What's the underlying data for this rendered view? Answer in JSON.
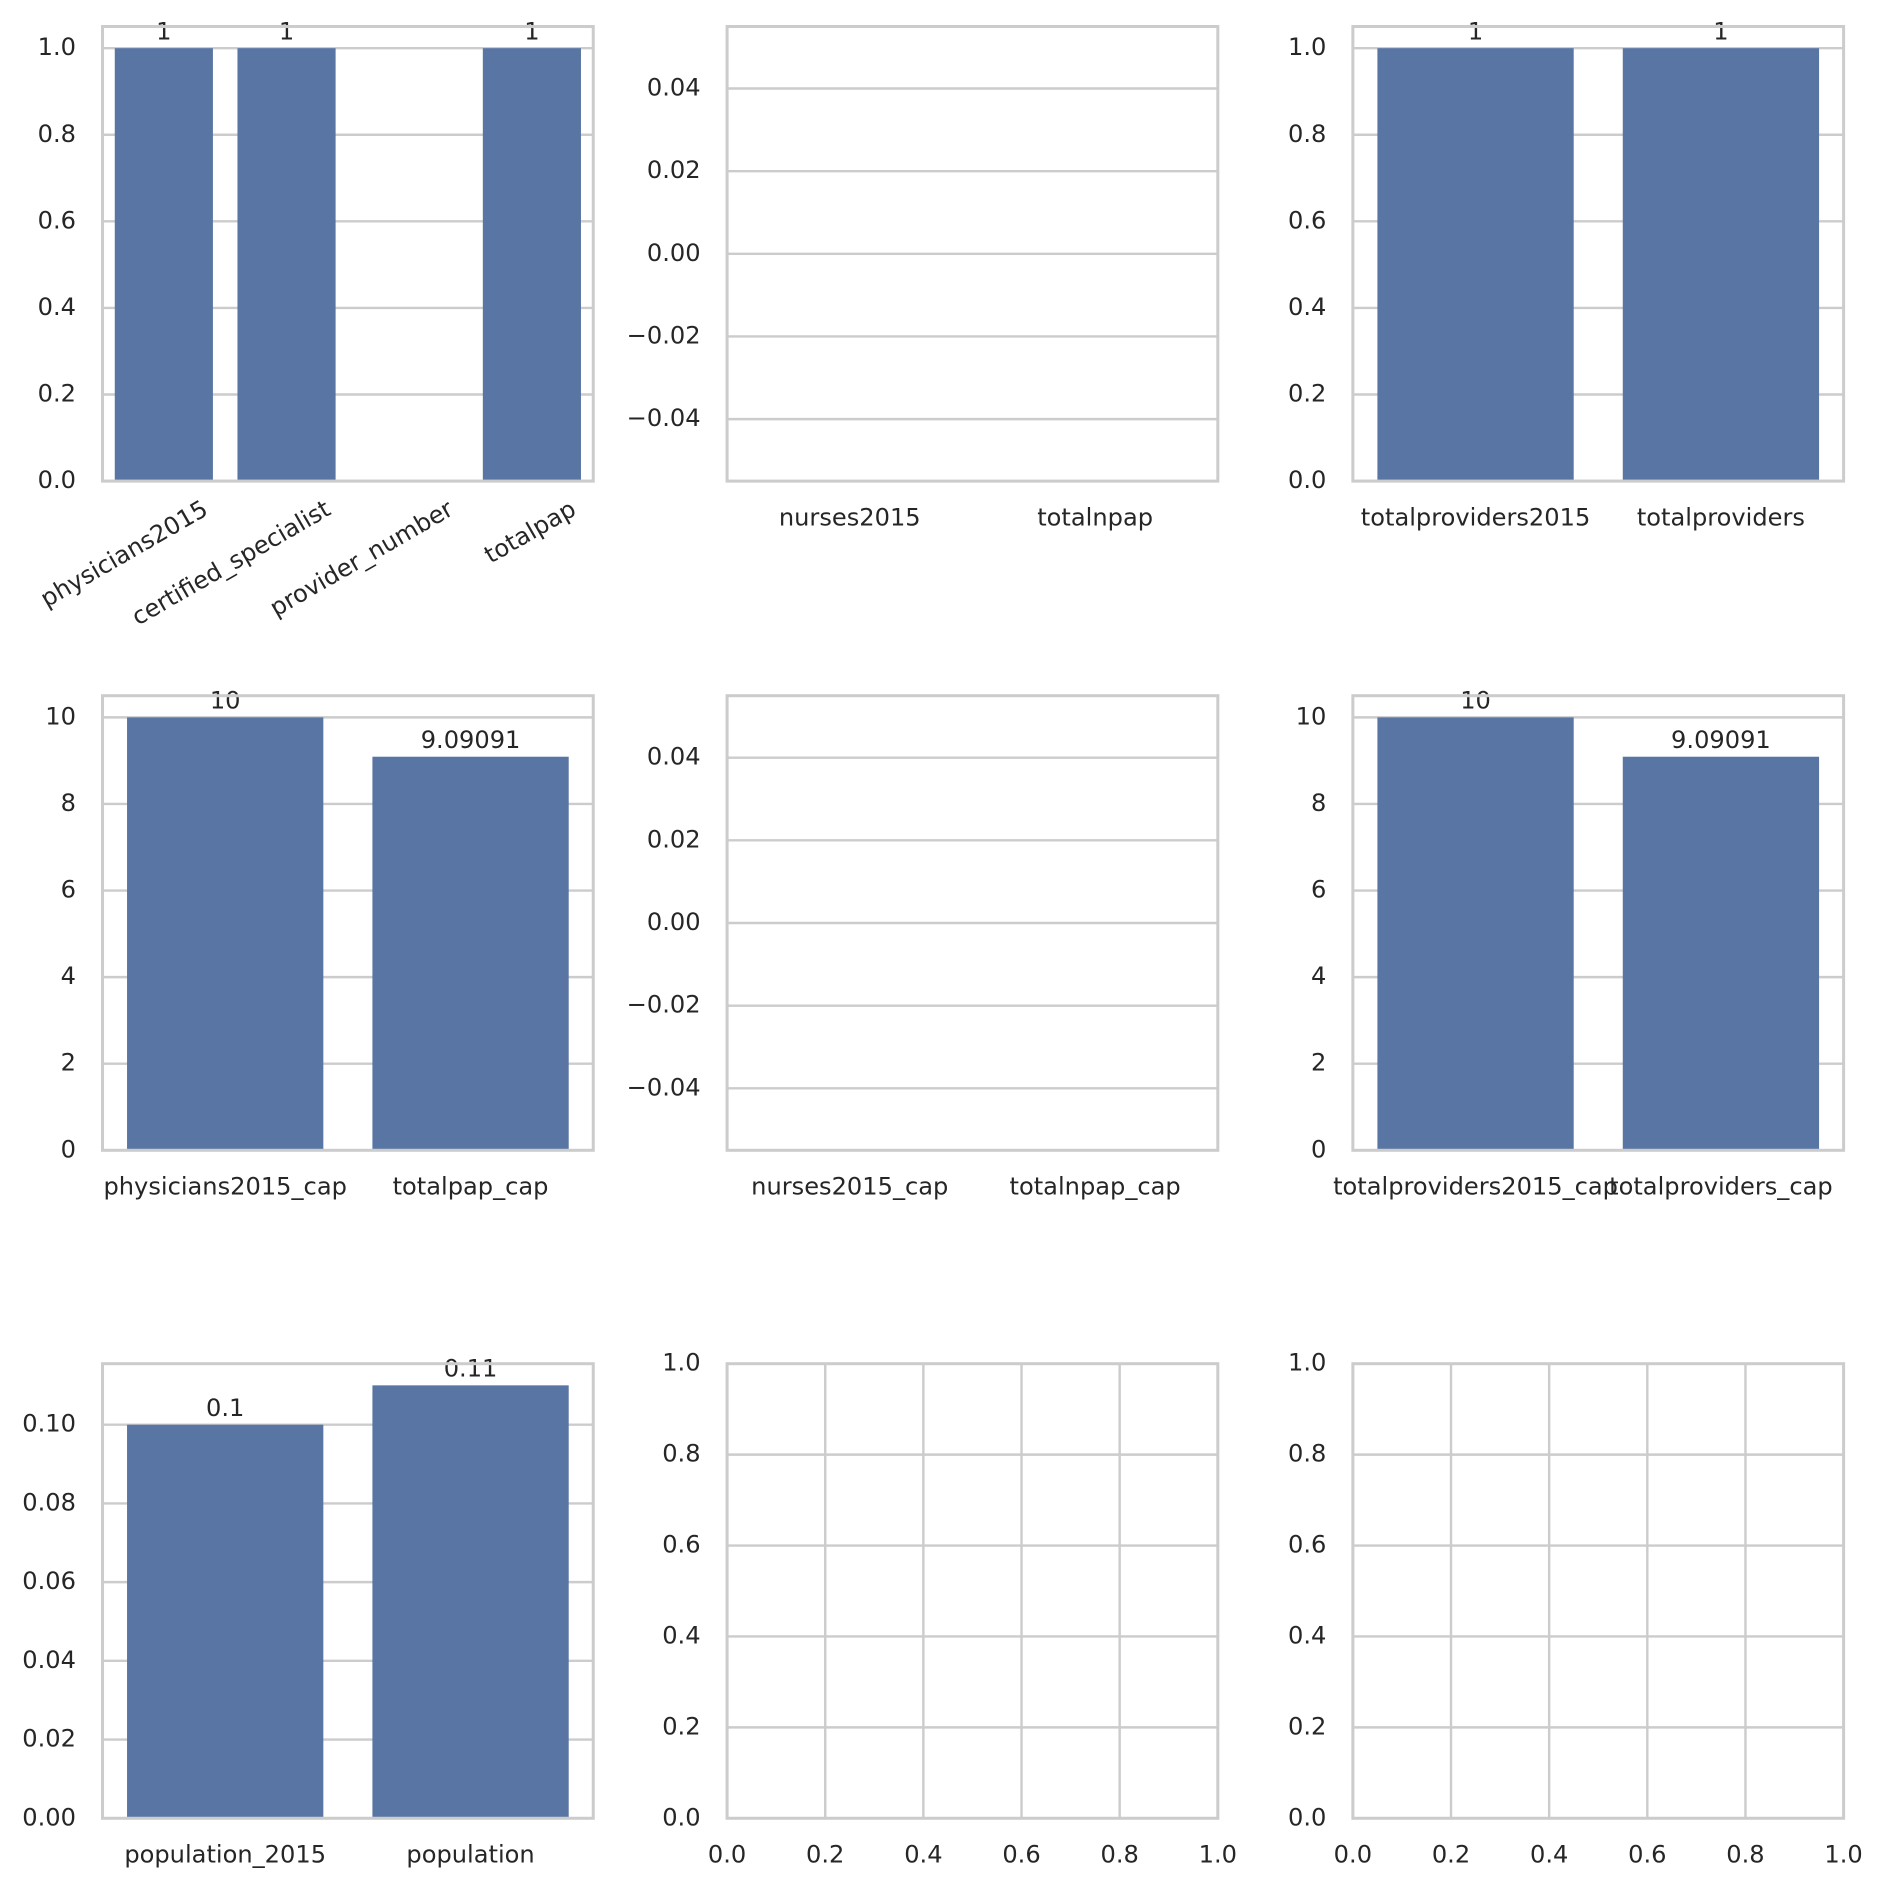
{
  "chart_data": [
    {
      "type": "bar",
      "categories": [
        "physicians2015",
        "certified_specialist",
        "provider_number",
        "totalpap"
      ],
      "values": [
        1,
        1,
        null,
        1
      ],
      "color": "#5975a4",
      "ylim": [
        0,
        1.05
      ],
      "yticks": [
        {
          "value": 0,
          "label": "0.0"
        },
        0.2,
        0.4,
        0.6,
        0.8,
        {
          "value": 1,
          "label": "1.0"
        }
      ],
      "grid": true
    },
    {
      "type": "bar",
      "categories": [
        "nurses2015",
        "totalnpap"
      ],
      "values": [
        null,
        null
      ],
      "color": "#5975a4",
      "ylim": [
        -0.055,
        0.055
      ],
      "yticks": [
        {
          "value": -0.04,
          "label": "−0.04"
        },
        {
          "value": -0.02,
          "label": "−0.02"
        },
        {
          "value": 0,
          "label": "0.00"
        },
        0.02,
        0.04
      ],
      "grid": true
    },
    {
      "type": "bar",
      "categories": [
        "totalproviders2015",
        "totalproviders"
      ],
      "values": [
        1,
        1
      ],
      "color": "#5975a4",
      "ylim": [
        0,
        1.05
      ],
      "yticks": [
        {
          "value": 0,
          "label": "0.0"
        },
        0.2,
        0.4,
        0.6,
        0.8,
        {
          "value": 1,
          "label": "1.0"
        }
      ],
      "grid": true
    },
    {
      "type": "bar",
      "categories": [
        "physicians2015_cap",
        "totalpap_cap"
      ],
      "values": [
        10,
        9.09091
      ],
      "color": "#5975a4",
      "ylim": [
        0,
        10.5
      ],
      "yticks": [
        0,
        2,
        4,
        6,
        8,
        10
      ],
      "grid": true
    },
    {
      "type": "bar",
      "categories": [
        "nurses2015_cap",
        "totalnpap_cap"
      ],
      "values": [
        null,
        null
      ],
      "color": "#5975a4",
      "ylim": [
        -0.055,
        0.055
      ],
      "yticks": [
        {
          "value": -0.04,
          "label": "−0.04"
        },
        {
          "value": -0.02,
          "label": "−0.02"
        },
        {
          "value": 0,
          "label": "0.00"
        },
        0.02,
        0.04
      ],
      "grid": true
    },
    {
      "type": "bar",
      "categories": [
        "totalproviders2015_cap",
        "totalproviders_cap"
      ],
      "values": [
        10,
        9.09091
      ],
      "color": "#5975a4",
      "ylim": [
        0,
        10.5
      ],
      "yticks": [
        0,
        2,
        4,
        6,
        8,
        10
      ],
      "grid": true
    },
    {
      "type": "bar",
      "categories": [
        "population_2015",
        "population"
      ],
      "values": [
        0.1,
        0.11
      ],
      "color": "#5975a4",
      "ylim": [
        0,
        0.1155
      ],
      "yticks": [
        {
          "value": 0,
          "label": "0.00"
        },
        0.02,
        0.04,
        0.06,
        0.08,
        {
          "value": 0.1,
          "label": "0.10"
        }
      ],
      "grid": true
    },
    {
      "type": "empty",
      "xlim": [
        0,
        1
      ],
      "xticks": [
        {
          "value": 0,
          "label": "0.0"
        },
        0.2,
        0.4,
        0.6,
        0.8,
        {
          "value": 1,
          "label": "1.0"
        }
      ],
      "ylim": [
        0,
        1
      ],
      "yticks": [
        {
          "value": 0,
          "label": "0.0"
        },
        0.2,
        0.4,
        0.6,
        0.8,
        {
          "value": 1,
          "label": "1.0"
        }
      ],
      "grid": true
    },
    {
      "type": "empty",
      "xlim": [
        0,
        1
      ],
      "xticks": [
        {
          "value": 0,
          "label": "0.0"
        },
        0.2,
        0.4,
        0.6,
        0.8,
        {
          "value": 1,
          "label": "1.0"
        }
      ],
      "ylim": [
        0,
        1
      ],
      "yticks": [
        {
          "value": 0,
          "label": "0.0"
        },
        0.2,
        0.4,
        0.6,
        0.8,
        {
          "value": 1,
          "label": "1.0"
        }
      ],
      "grid": true
    }
  ]
}
